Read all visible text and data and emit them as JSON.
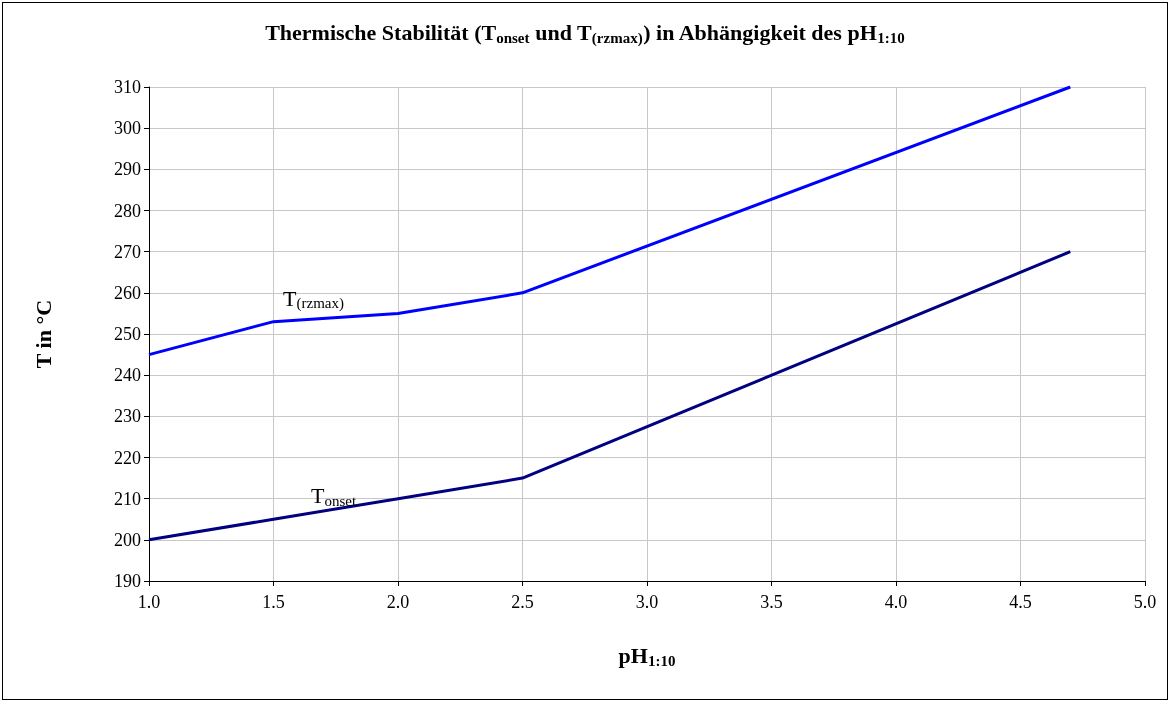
{
  "chart_data": {
    "type": "line",
    "title": "Thermische Stabilität (T$_{onset}$ und T$_{(rzmax)}$) in Abhängigkeit des pH$_{1:10}$",
    "xlabel": "pH$_{1:10}$",
    "ylabel": "T in °C",
    "x": [
      1.0,
      1.5,
      2.0,
      2.5,
      4.7
    ],
    "series": [
      {
        "name": "T$_{(rzmax)}$",
        "color": "#0000ff",
        "values": [
          245,
          253,
          255,
          260,
          310
        ]
      },
      {
        "name": "T$_{onset}$",
        "color": "#000080",
        "values": [
          200,
          205,
          210,
          215,
          270
        ]
      }
    ],
    "xlim": [
      1.0,
      5.0
    ],
    "xticks": [
      {
        "value": 1,
        "label": "1.0"
      },
      {
        "value": 1.5,
        "label": "1.5"
      },
      {
        "value": 2,
        "label": "2.0"
      },
      {
        "value": 2.5,
        "label": "2.5"
      },
      {
        "value": 3,
        "label": "3.0"
      },
      {
        "value": 3.5,
        "label": "3.5"
      },
      {
        "value": 4,
        "label": "4.0"
      },
      {
        "value": 4.5,
        "label": "4.5"
      },
      {
        "value": 5,
        "label": "5.0"
      }
    ],
    "ylim": [
      190,
      310
    ],
    "yticks": [
      190,
      200,
      210,
      220,
      230,
      240,
      250,
      260,
      270,
      280,
      290,
      300,
      310
    ],
    "grid": true,
    "legend": false,
    "marker": "none",
    "line_style": "solid"
  }
}
